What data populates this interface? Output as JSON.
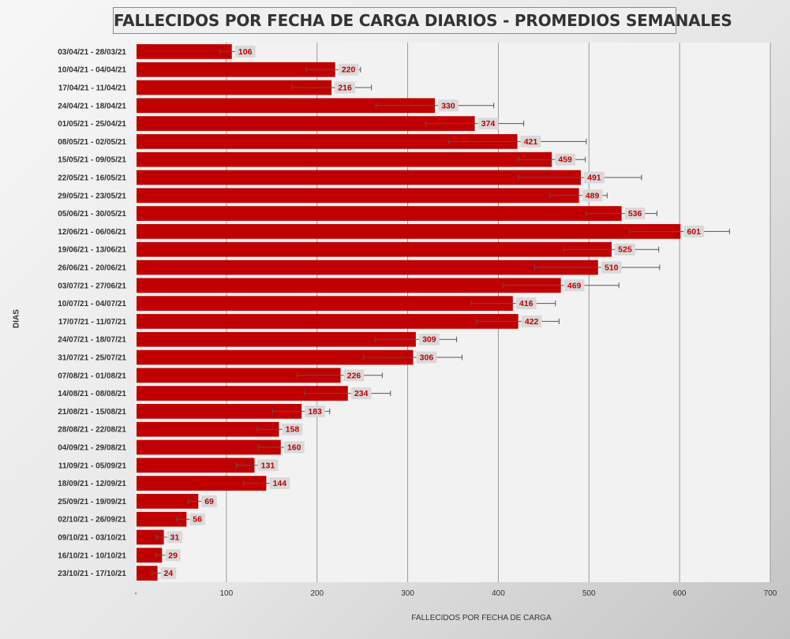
{
  "chart_data": {
    "type": "bar",
    "orientation": "horizontal",
    "title": "FALLECIDOS POR FECHA DE CARGA DIARIOS - PROMEDIOS SEMANALES",
    "xlabel": "FALLECIDOS POR FECHA DE CARGA",
    "ylabel": "DIAS",
    "xlim": [
      0,
      700
    ],
    "x_ticks": [
      "-",
      "100",
      "200",
      "300",
      "400",
      "500",
      "600",
      "700"
    ],
    "grid": "vertical",
    "bar_color": "#c00000",
    "label_color": "#c00000",
    "categories": [
      "03/04/21 - 28/03/21",
      "10/04/21 - 04/04/21",
      "17/04/21 - 11/04/21",
      "24/04/21 - 18/04/21",
      "01/05/21 - 25/04/21",
      "08/05/21 - 02/05/21",
      "15/05/21 - 09/05/21",
      "22/05/21 - 16/05/21",
      "29/05/21 - 23/05/21",
      "05/06/21 - 30/05/21",
      "12/06/21 - 06/06/21",
      "19/06/21 - 13/06/21",
      "26/06/21 - 20/06/21",
      "03/07/21 - 27/06/21",
      "10/07/21 - 04/07/21",
      "17/07/21 - 11/07/21",
      "24/07/21 - 18/07/21",
      "31/07/21 - 25/07/21",
      "07/08/21 - 01/08/21",
      "14/08/21 - 08/08/21",
      "21/08/21 - 15/08/21",
      "28/08/21 - 22/08/21",
      "04/09/21 - 29/08/21",
      "11/09/21 - 05/09/21",
      "18/09/21 - 12/09/21",
      "25/09/21 - 19/09/21",
      "02/10/21 - 26/09/21",
      "09/10/21 - 03/10/21",
      "16/10/21 - 10/10/21",
      "23/10/21 - 17/10/21"
    ],
    "values": [
      106,
      220,
      216,
      330,
      374,
      421,
      459,
      491,
      489,
      536,
      601,
      525,
      510,
      469,
      416,
      422,
      309,
      306,
      226,
      234,
      183,
      158,
      160,
      131,
      144,
      69,
      56,
      31,
      29,
      24
    ],
    "error_low": [
      93,
      188,
      172,
      265,
      320,
      345,
      422,
      422,
      457,
      497,
      545,
      472,
      440,
      405,
      370,
      376,
      264,
      251,
      178,
      186,
      151,
      134,
      135,
      111,
      119,
      58,
      45,
      23,
      22,
      18
    ],
    "error_high": [
      118,
      248,
      260,
      395,
      428,
      497,
      496,
      558,
      520,
      575,
      655,
      577,
      578,
      533,
      463,
      467,
      354,
      360,
      272,
      281,
      214,
      180,
      183,
      151,
      167,
      80,
      66,
      38,
      36,
      30
    ]
  }
}
